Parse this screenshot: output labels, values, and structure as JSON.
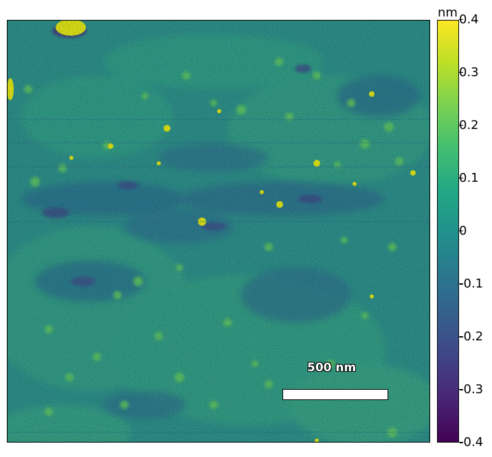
{
  "image": {
    "description_icon": "afm-height-map",
    "scale_bar": {
      "label": "500 nm"
    }
  },
  "colorbar": {
    "unit": "nm",
    "ticks": [
      "0.4",
      "0.3",
      "0.2",
      "0.1",
      "0",
      "-0.1",
      "-0.2",
      "-0.3",
      "-0.4"
    ],
    "colormap": "viridis",
    "min": -0.4,
    "max": 0.4
  }
}
